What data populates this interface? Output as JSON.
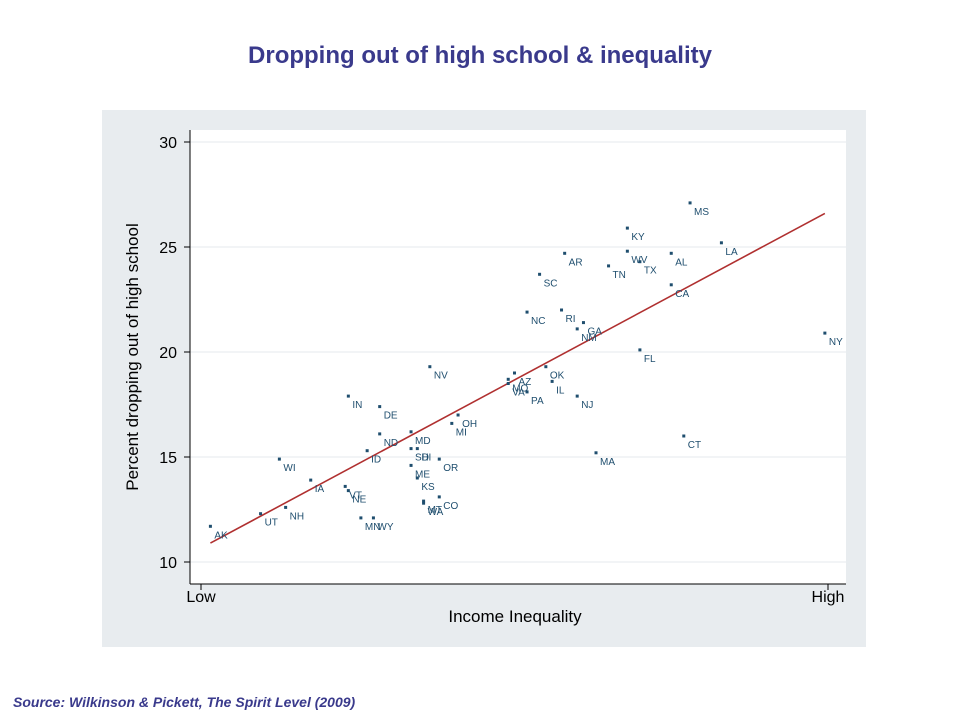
{
  "slide": {
    "title": "Dropping out of high school & inequality",
    "source": "Source: Wilkinson & Pickett, The Spirit Level (2009)"
  },
  "chart_data": {
    "type": "scatter",
    "xlabel": "Income Inequality",
    "ylabel": "Percent dropping out of high school",
    "x_tick_labels": [
      "Low",
      "High"
    ],
    "xlim": [
      0,
      100
    ],
    "ylim": [
      10,
      30
    ],
    "y_ticks": [
      10,
      15,
      20,
      25,
      30
    ],
    "grid": true,
    "colors": {
      "point": "#1f4e6e",
      "fit_line": "#b03030",
      "panel_bg": "#e8ecef",
      "plot_bg": "#ffffff",
      "grid": "#e6eaed"
    },
    "fit_line": {
      "x": [
        1.5,
        99.5
      ],
      "y": [
        10.9,
        26.6
      ]
    },
    "points": [
      {
        "label": "AK",
        "x": 1.5,
        "y": 11.7
      },
      {
        "label": "UT",
        "x": 9.5,
        "y": 12.3
      },
      {
        "label": "NH",
        "x": 13.5,
        "y": 12.6
      },
      {
        "label": "WI",
        "x": 12.5,
        "y": 14.9
      },
      {
        "label": "IA",
        "x": 17.5,
        "y": 13.9
      },
      {
        "label": "VT",
        "x": 23.0,
        "y": 13.6
      },
      {
        "label": "NE",
        "x": 23.5,
        "y": 13.4
      },
      {
        "label": "MN",
        "x": 25.5,
        "y": 12.1
      },
      {
        "label": "WY",
        "x": 27.5,
        "y": 12.1
      },
      {
        "label": "IN",
        "x": 23.5,
        "y": 17.9
      },
      {
        "label": "DE",
        "x": 28.5,
        "y": 17.4
      },
      {
        "label": "ID",
        "x": 26.5,
        "y": 15.3
      },
      {
        "label": "ND",
        "x": 28.5,
        "y": 16.1
      },
      {
        "label": "MD",
        "x": 33.5,
        "y": 16.2
      },
      {
        "label": "SD",
        "x": 33.5,
        "y": 15.4
      },
      {
        "label": "HI",
        "x": 34.5,
        "y": 15.4
      },
      {
        "label": "ME",
        "x": 33.5,
        "y": 14.6
      },
      {
        "label": "KS",
        "x": 34.5,
        "y": 14.0
      },
      {
        "label": "MT",
        "x": 35.5,
        "y": 12.9
      },
      {
        "label": "WA",
        "x": 35.5,
        "y": 12.8
      },
      {
        "label": "CO",
        "x": 38.0,
        "y": 13.1
      },
      {
        "label": "OR",
        "x": 38.0,
        "y": 14.9
      },
      {
        "label": "MI",
        "x": 40.0,
        "y": 16.6
      },
      {
        "label": "OH",
        "x": 41.0,
        "y": 17.0
      },
      {
        "label": "NV",
        "x": 36.5,
        "y": 19.3
      },
      {
        "label": "MO",
        "x": 49.0,
        "y": 18.7
      },
      {
        "label": "AZ",
        "x": 50.0,
        "y": 19.0
      },
      {
        "label": "VA",
        "x": 49.0,
        "y": 18.5
      },
      {
        "label": "PA",
        "x": 52.0,
        "y": 18.1
      },
      {
        "label": "OK",
        "x": 55.0,
        "y": 19.3
      },
      {
        "label": "IL",
        "x": 56.0,
        "y": 18.6
      },
      {
        "label": "NJ",
        "x": 60.0,
        "y": 17.9
      },
      {
        "label": "NC",
        "x": 52.0,
        "y": 21.9
      },
      {
        "label": "SC",
        "x": 54.0,
        "y": 23.7
      },
      {
        "label": "AR",
        "x": 58.0,
        "y": 24.7
      },
      {
        "label": "RI",
        "x": 57.5,
        "y": 22.0
      },
      {
        "label": "NM",
        "x": 60.0,
        "y": 21.1
      },
      {
        "label": "GA",
        "x": 61.0,
        "y": 21.4
      },
      {
        "label": "TN",
        "x": 65.0,
        "y": 24.1
      },
      {
        "label": "KY",
        "x": 68.0,
        "y": 25.9
      },
      {
        "label": "WV",
        "x": 68.0,
        "y": 24.8
      },
      {
        "label": "TX",
        "x": 70.0,
        "y": 24.3
      },
      {
        "label": "MS",
        "x": 78.0,
        "y": 27.1
      },
      {
        "label": "AL",
        "x": 75.0,
        "y": 24.7
      },
      {
        "label": "CA",
        "x": 75.0,
        "y": 23.2
      },
      {
        "label": "LA",
        "x": 83.0,
        "y": 25.2
      },
      {
        "label": "FL",
        "x": 70.0,
        "y": 20.1
      },
      {
        "label": "CT",
        "x": 77.0,
        "y": 16.0
      },
      {
        "label": "MA",
        "x": 63.0,
        "y": 15.2
      },
      {
        "label": "NY",
        "x": 99.5,
        "y": 20.9
      }
    ]
  }
}
